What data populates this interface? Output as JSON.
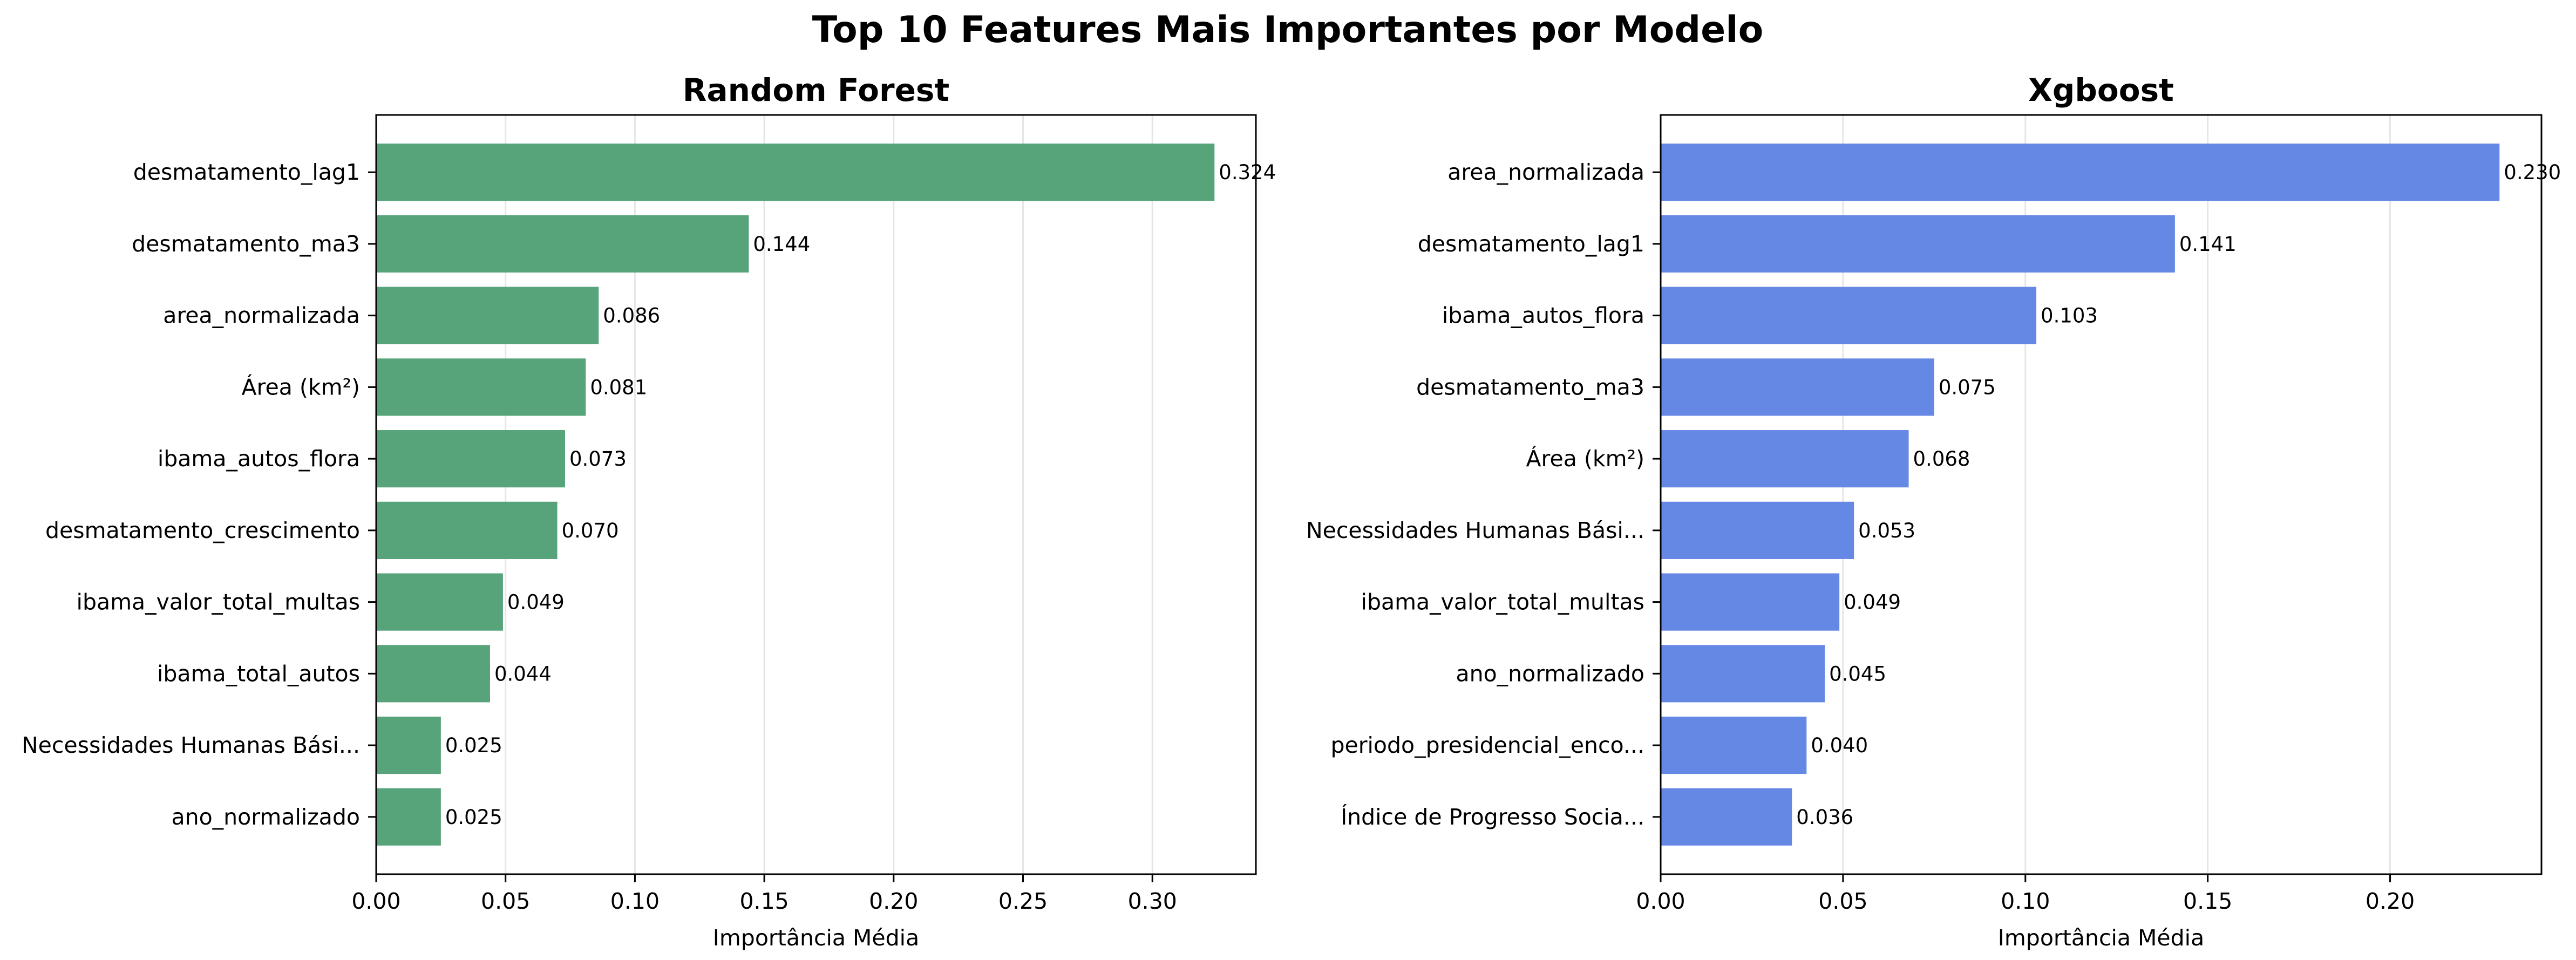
{
  "figure": {
    "title": "Top 10 Features Mais Importantes por Modelo"
  },
  "chart_data": [
    {
      "type": "bar",
      "orientation": "horizontal",
      "title": "Random Forest",
      "xlabel": "Importância Média",
      "ylabel": "",
      "xlim": [
        0,
        0.34
      ],
      "xticks": [
        "0.00",
        "0.05",
        "0.10",
        "0.15",
        "0.20",
        "0.25",
        "0.30"
      ],
      "grid": "vertical",
      "bar_color": "#57a37a",
      "categories": [
        "desmatamento_lag1",
        "desmatamento_ma3",
        "area_normalizada",
        "Área (km²)",
        "ibama_autos_flora",
        "desmatamento_crescimento",
        "ibama_valor_total_multas",
        "ibama_total_autos",
        "Necessidades Humanas Bási...",
        "ano_normalizado"
      ],
      "values": [
        0.324,
        0.144,
        0.086,
        0.081,
        0.073,
        0.07,
        0.049,
        0.044,
        0.025,
        0.025
      ],
      "value_labels": [
        "0.324",
        "0.144",
        "0.086",
        "0.081",
        "0.073",
        "0.070",
        "0.049",
        "0.044",
        "0.025",
        "0.025"
      ]
    },
    {
      "type": "bar",
      "orientation": "horizontal",
      "title": "Xgboost",
      "xlabel": "Importância Média",
      "ylabel": "",
      "xlim": [
        0,
        0.2415
      ],
      "xticks": [
        "0.00",
        "0.05",
        "0.10",
        "0.15",
        "0.20"
      ],
      "grid": "vertical",
      "bar_color": "#6688e5",
      "categories": [
        "area_normalizada",
        "desmatamento_lag1",
        "ibama_autos_flora",
        "desmatamento_ma3",
        "Área (km²)",
        "Necessidades Humanas Bási...",
        "ibama_valor_total_multas",
        "ano_normalizado",
        "periodo_presidencial_enco...",
        "Índice de Progresso Socia..."
      ],
      "values": [
        0.23,
        0.141,
        0.103,
        0.075,
        0.068,
        0.053,
        0.049,
        0.045,
        0.04,
        0.036
      ],
      "value_labels": [
        "0.230",
        "0.141",
        "0.103",
        "0.075",
        "0.068",
        "0.053",
        "0.049",
        "0.045",
        "0.040",
        "0.036"
      ]
    }
  ]
}
